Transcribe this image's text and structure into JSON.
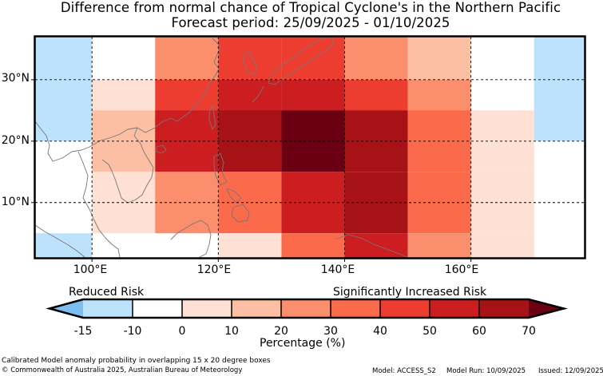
{
  "title": {
    "line1": "Difference from normal chance of Tropical Cyclone's in the Northern Pacific",
    "line2": "Forecast period: 25/09/2025 - 01/10/2025"
  },
  "chart_data": {
    "type": "heatmap",
    "x_ticks": [
      "100°E",
      "120°E",
      "140°E",
      "160°E"
    ],
    "y_ticks": [
      "30°N",
      "20°N",
      "10°N"
    ],
    "lon_range": [
      91,
      178
    ],
    "lat_range": [
      1,
      37
    ],
    "grid_lines": true,
    "cell_size": "10 x 10 degree offsets",
    "cells": [
      {
        "lon": [
          90,
          100
        ],
        "lat": [
          30,
          40
        ],
        "value": -15,
        "color": "#bde2fb"
      },
      {
        "lon": [
          90,
          100
        ],
        "lat": [
          20,
          30
        ],
        "value": -15,
        "color": "#bde2fb"
      },
      {
        "lon": [
          110,
          120
        ],
        "lat": [
          30,
          40
        ],
        "value": 35,
        "color": "#fb8f6d"
      },
      {
        "lon": [
          120,
          130
        ],
        "lat": [
          30,
          40
        ],
        "value": 45,
        "color": "#ed3d31"
      },
      {
        "lon": [
          130,
          140
        ],
        "lat": [
          30,
          40
        ],
        "value": 45,
        "color": "#ed3d31"
      },
      {
        "lon": [
          140,
          150
        ],
        "lat": [
          30,
          40
        ],
        "value": 35,
        "color": "#fb8f6d"
      },
      {
        "lon": [
          150,
          160
        ],
        "lat": [
          30,
          40
        ],
        "value": 15,
        "color": "#fdbfa4"
      },
      {
        "lon": [
          170,
          180
        ],
        "lat": [
          30,
          40
        ],
        "value": -15,
        "color": "#bde2fb"
      },
      {
        "lon": [
          100,
          110
        ],
        "lat": [
          20,
          30
        ],
        "value": 5,
        "color": "#fee0d4"
      },
      {
        "lon": [
          110,
          120
        ],
        "lat": [
          20,
          30
        ],
        "value": 45,
        "color": "#ed3d31"
      },
      {
        "lon": [
          120,
          130
        ],
        "lat": [
          20,
          30
        ],
        "value": 55,
        "color": "#cc1d21"
      },
      {
        "lon": [
          130,
          140
        ],
        "lat": [
          20,
          30
        ],
        "value": 55,
        "color": "#cc1d21"
      },
      {
        "lon": [
          140,
          150
        ],
        "lat": [
          20,
          30
        ],
        "value": 45,
        "color": "#ed3d31"
      },
      {
        "lon": [
          150,
          160
        ],
        "lat": [
          20,
          30
        ],
        "value": 35,
        "color": "#fb8f6d"
      },
      {
        "lon": [
          170,
          180
        ],
        "lat": [
          20,
          30
        ],
        "value": -15,
        "color": "#bde2fb"
      },
      {
        "lon": [
          100,
          110
        ],
        "lat": [
          15,
          25
        ],
        "value": 15,
        "color": "#fdbfa4"
      },
      {
        "lon": [
          110,
          120
        ],
        "lat": [
          15,
          25
        ],
        "value": 55,
        "color": "#cc1d21"
      },
      {
        "lon": [
          120,
          130
        ],
        "lat": [
          15,
          25
        ],
        "value": 65,
        "color": "#a61216"
      },
      {
        "lon": [
          130,
          140
        ],
        "lat": [
          15,
          25
        ],
        "value": 75,
        "color": "#6b0012"
      },
      {
        "lon": [
          140,
          150
        ],
        "lat": [
          15,
          25
        ],
        "value": 65,
        "color": "#a61216"
      },
      {
        "lon": [
          150,
          160
        ],
        "lat": [
          15,
          25
        ],
        "value": 40,
        "color": "#fb6a4a"
      },
      {
        "lon": [
          160,
          170
        ],
        "lat": [
          15,
          25
        ],
        "value": 5,
        "color": "#fee0d4"
      },
      {
        "lon": [
          100,
          110
        ],
        "lat": [
          5,
          15
        ],
        "value": 5,
        "color": "#fee0d4"
      },
      {
        "lon": [
          110,
          120
        ],
        "lat": [
          5,
          15
        ],
        "value": 35,
        "color": "#fb8f6d"
      },
      {
        "lon": [
          120,
          130
        ],
        "lat": [
          5,
          15
        ],
        "value": 40,
        "color": "#fb6a4a"
      },
      {
        "lon": [
          130,
          140
        ],
        "lat": [
          5,
          15
        ],
        "value": 55,
        "color": "#cc1d21"
      },
      {
        "lon": [
          140,
          150
        ],
        "lat": [
          5,
          15
        ],
        "value": 65,
        "color": "#a61216"
      },
      {
        "lon": [
          150,
          160
        ],
        "lat": [
          5,
          15
        ],
        "value": 40,
        "color": "#fb6a4a"
      },
      {
        "lon": [
          160,
          170
        ],
        "lat": [
          5,
          15
        ],
        "value": 5,
        "color": "#fee0d4"
      },
      {
        "lon": [
          90,
          100
        ],
        "lat": [
          0,
          5
        ],
        "value": -15,
        "color": "#bde2fb"
      },
      {
        "lon": [
          120,
          130
        ],
        "lat": [
          0,
          5
        ],
        "value": 5,
        "color": "#fee0d4"
      },
      {
        "lon": [
          130,
          140
        ],
        "lat": [
          0,
          5
        ],
        "value": 40,
        "color": "#fb6a4a"
      },
      {
        "lon": [
          140,
          150
        ],
        "lat": [
          0,
          5
        ],
        "value": 55,
        "color": "#cc1d21"
      },
      {
        "lon": [
          150,
          160
        ],
        "lat": [
          0,
          5
        ],
        "value": 35,
        "color": "#fb8f6d"
      },
      {
        "lon": [
          160,
          170
        ],
        "lat": [
          0,
          5
        ],
        "value": 5,
        "color": "#fee0d4"
      }
    ]
  },
  "colorbar": {
    "label": "Percentage (%)",
    "left_label": "Reduced Risk",
    "right_label": "Significantly Increased Risk",
    "ticks": [
      "-15",
      "-10",
      "0",
      "10",
      "20",
      "30",
      "40",
      "50",
      "60",
      "70"
    ],
    "colors": [
      "#7fbdf0",
      "#bde2fb",
      "#ffffff",
      "#fee0d4",
      "#fdbfa4",
      "#fb8f6d",
      "#fb6a4a",
      "#ed3d31",
      "#cc1d21",
      "#a61216",
      "#6b0012"
    ]
  },
  "footer": {
    "line1": "Calibrated Model anomaly probability in overlapping 15 x 20 degree boxes",
    "line2": "© Commonwealth of Australia 2025, Australian Bureau of Meteorology",
    "model": "Model: ACCESS_S2",
    "model_run": "Model Run: 10/09/2025",
    "issued": "Issued: 12/09/2025"
  }
}
